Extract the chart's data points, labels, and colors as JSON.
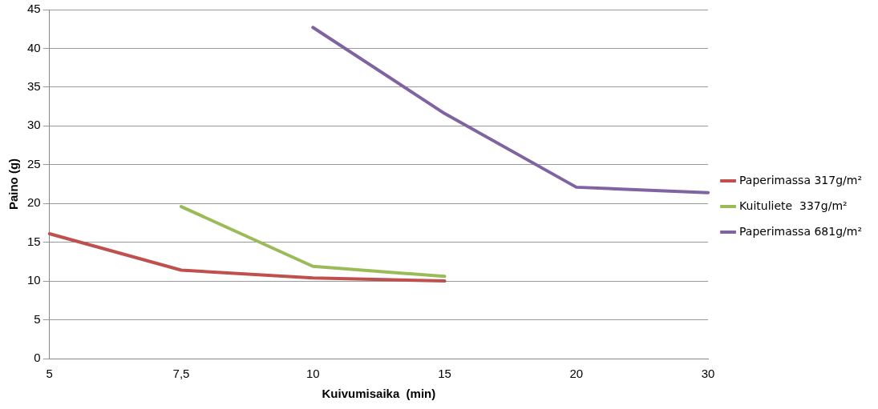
{
  "chart_data": {
    "type": "line",
    "xlabel": "Kuivumisaika  (min)",
    "ylabel": "Paino (g)",
    "categories": [
      "5",
      "7,5",
      "10",
      "15",
      "20",
      "30"
    ],
    "series": [
      {
        "name": "Paperimassa 317g/m²",
        "color": "#c0504d",
        "values": [
          16.1,
          11.4,
          10.4,
          10.0,
          null,
          null
        ]
      },
      {
        "name": "Kuituliete  337g/m²",
        "color": "#9bbb59",
        "values": [
          null,
          19.6,
          11.9,
          10.6,
          null,
          null
        ]
      },
      {
        "name": "Paperimassa 681g/m²",
        "color": "#8064a2",
        "values": [
          null,
          null,
          42.7,
          31.6,
          22.1,
          21.4
        ]
      }
    ],
    "ylim": [
      0,
      45
    ],
    "yticks": [
      0,
      5,
      10,
      15,
      20,
      25,
      30,
      35,
      40,
      45
    ],
    "grid": "y",
    "legend": "right",
    "marker": "none",
    "line_style": "solid"
  }
}
